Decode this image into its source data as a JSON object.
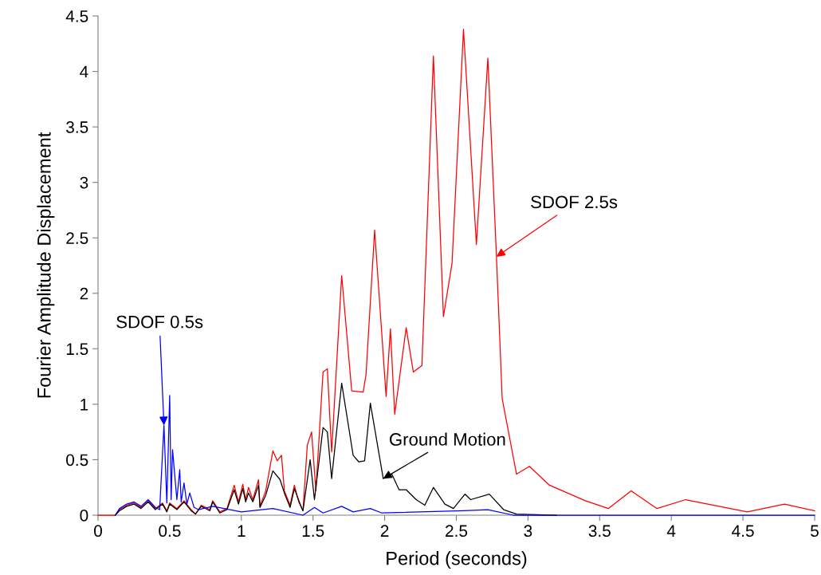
{
  "chart_data": {
    "type": "line",
    "xlabel": "Period (seconds)",
    "ylabel": "Fourier Amplitude Displacement",
    "xlim": [
      0,
      5
    ],
    "ylim": [
      0,
      4.5
    ],
    "xticks": [
      0,
      0.5,
      1,
      1.5,
      2,
      2.5,
      3,
      3.5,
      4,
      4.5,
      5
    ],
    "yticks": [
      0,
      0.5,
      1,
      1.5,
      2,
      2.5,
      3,
      3.5,
      4,
      4.5
    ],
    "grid": false,
    "legend": false,
    "marker": "none",
    "line_style": "solid",
    "series": [
      {
        "color": "#ff0000",
        "x": [
          0,
          0.12,
          0.15,
          0.2,
          0.25,
          0.3,
          0.35,
          0.4,
          0.45,
          0.48,
          0.5,
          0.55,
          0.6,
          0.65,
          0.68,
          0.72,
          0.78,
          0.8,
          0.85,
          0.9,
          0.95,
          0.98,
          1.01,
          1.03,
          1.05,
          1.08,
          1.12,
          1.13,
          1.17,
          1.22,
          1.25,
          1.28,
          1.3,
          1.34,
          1.37,
          1.4,
          1.43,
          1.46,
          1.49,
          1.52,
          1.57,
          1.6,
          1.63,
          1.7,
          1.77,
          1.85,
          1.87,
          1.93,
          2.01,
          2.04,
          2.07,
          2.15,
          2.2,
          2.26,
          2.34,
          2.41,
          2.47,
          2.55,
          2.64,
          2.72,
          2.78,
          2.82,
          2.92,
          3.01,
          3.15,
          3.4,
          3.56,
          3.72,
          3.9,
          4.1,
          4.53,
          4.79,
          5.0
        ],
        "values": [
          0,
          0,
          0.05,
          0.09,
          0.11,
          0.07,
          0.13,
          0.06,
          0.11,
          0.04,
          0.11,
          0.06,
          0.13,
          0.05,
          0.01,
          0.09,
          0.05,
          0.13,
          0.03,
          0.06,
          0.27,
          0.12,
          0.28,
          0.14,
          0.25,
          0.14,
          0.32,
          0.08,
          0.22,
          0.58,
          0.49,
          0.54,
          0.22,
          0.09,
          0.27,
          0.12,
          0.04,
          0.63,
          0.75,
          0.22,
          1.29,
          1.32,
          0.57,
          2.16,
          1.12,
          1.11,
          1.27,
          2.57,
          1.07,
          1.68,
          0.91,
          1.69,
          1.29,
          1.35,
          4.14,
          1.79,
          2.27,
          4.38,
          2.44,
          4.12,
          2.33,
          1.05,
          0.37,
          0.44,
          0.27,
          0.13,
          0.06,
          0.22,
          0.06,
          0.14,
          0.03,
          0.1,
          0.04
        ]
      },
      {
        "color": "#000000",
        "x": [
          0.12,
          0.15,
          0.2,
          0.25,
          0.3,
          0.35,
          0.4,
          0.45,
          0.48,
          0.5,
          0.55,
          0.6,
          0.65,
          0.68,
          0.72,
          0.78,
          0.8,
          0.85,
          0.9,
          0.95,
          0.98,
          1.01,
          1.03,
          1.05,
          1.08,
          1.12,
          1.13,
          1.17,
          1.22,
          1.27,
          1.3,
          1.34,
          1.37,
          1.41,
          1.43,
          1.48,
          1.51,
          1.57,
          1.6,
          1.63,
          1.7,
          1.78,
          1.82,
          1.86,
          1.9,
          1.99,
          2.05,
          2.1,
          2.15,
          2.22,
          2.28,
          2.34,
          2.42,
          2.48,
          2.56,
          2.6,
          2.73,
          2.83,
          2.92,
          3.2
        ],
        "values": [
          0,
          0.04,
          0.08,
          0.1,
          0.06,
          0.12,
          0.05,
          0.1,
          0.03,
          0.1,
          0.05,
          0.12,
          0.04,
          0.01,
          0.08,
          0.04,
          0.12,
          0.02,
          0.05,
          0.23,
          0.1,
          0.24,
          0.12,
          0.2,
          0.12,
          0.27,
          0.07,
          0.18,
          0.4,
          0.32,
          0.2,
          0.07,
          0.24,
          0.1,
          0.04,
          0.5,
          0.14,
          0.79,
          0.75,
          0.33,
          1.19,
          0.54,
          0.48,
          0.49,
          1.01,
          0.33,
          0.37,
          0.23,
          0.23,
          0.14,
          0.09,
          0.25,
          0.1,
          0.06,
          0.19,
          0.14,
          0.19,
          0.05,
          0.01,
          0
        ]
      },
      {
        "color": "#0000ff",
        "x": [
          0.12,
          0.15,
          0.2,
          0.25,
          0.3,
          0.35,
          0.4,
          0.43,
          0.45,
          0.46,
          0.48,
          0.5,
          0.51,
          0.52,
          0.55,
          0.57,
          0.58,
          0.6,
          0.62,
          0.64,
          0.67,
          0.7,
          0.8,
          1.0,
          1.22,
          1.43,
          1.51,
          1.57,
          1.7,
          1.78,
          1.9,
          1.98,
          2.55,
          2.72,
          2.9,
          5.0
        ],
        "values": [
          0,
          0.06,
          0.1,
          0.12,
          0.08,
          0.14,
          0.07,
          0.05,
          0.56,
          0.81,
          0.11,
          1.08,
          0.14,
          0.59,
          0.14,
          0.41,
          0.12,
          0.29,
          0.1,
          0.2,
          0.07,
          0.05,
          0.08,
          0.03,
          0.06,
          0,
          0.07,
          0.02,
          0.08,
          0.03,
          0.06,
          0.02,
          0.04,
          0.05,
          0,
          0
        ]
      }
    ],
    "annotations": [
      {
        "text": "SDOF 0.5s",
        "x": 0.46,
        "y": 0.81
      },
      {
        "text": "SDOF 2.5s",
        "x": 2.78,
        "y": 2.33
      },
      {
        "text": "Ground Motion",
        "x": 1.99,
        "y": 0.33
      }
    ]
  }
}
